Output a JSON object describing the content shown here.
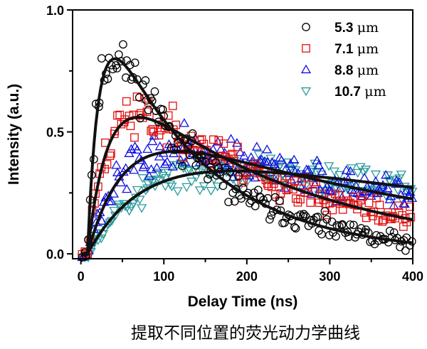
{
  "chart_data": {
    "type": "scatter",
    "caption": "提取不同位置的荧光动力学曲线",
    "xlabel": "Delay Time (ns)",
    "ylabel": "Intensity (a.u.)",
    "xlim": [
      -10,
      400
    ],
    "ylim": [
      -0.02,
      1.0
    ],
    "x_ticks": [
      0,
      100,
      200,
      300,
      400
    ],
    "x_tick_labels": [
      "0",
      "100",
      "200",
      "300",
      "400"
    ],
    "y_ticks": [
      0.0,
      0.5,
      1.0
    ],
    "y_tick_labels": [
      "0.0",
      "0.5",
      "1.0"
    ],
    "legend_position": "top-right",
    "fit_line_color": "#111111",
    "series": [
      {
        "name": "5.3 μm",
        "label_value": "5.3 ",
        "label_unit": "μm",
        "marker": "circle",
        "color": "#000000",
        "fit": {
          "amp": 0.8,
          "t0": 8,
          "rise": 15,
          "decay": 120,
          "end": 398
        },
        "noise": 0.045,
        "seed": 11,
        "n": 170
      },
      {
        "name": "7.1 μm",
        "label_value": "7.1 ",
        "label_unit": "μm",
        "marker": "square",
        "color": "#e01010",
        "fit": {
          "amp": 0.56,
          "t0": 8,
          "rise": 28,
          "decay": 220,
          "end": 398
        },
        "noise": 0.04,
        "seed": 23,
        "n": 170
      },
      {
        "name": "8.8 μm",
        "label_value": "8.8 ",
        "label_unit": "μm",
        "marker": "triangle-up",
        "color": "#1010e0",
        "fit": {
          "amp": 0.42,
          "t0": 8,
          "rise": 50,
          "decay": 380,
          "end": 400
        },
        "noise": 0.035,
        "seed": 37,
        "n": 170
      },
      {
        "name": "10.7 μm",
        "label_value": "10.7 ",
        "label_unit": "μm",
        "marker": "triangle-down",
        "color": "#2a9a9a",
        "fit": {
          "amp": 0.34,
          "t0": 8,
          "rise": 80,
          "decay": 650,
          "end": 400
        },
        "noise": 0.032,
        "seed": 53,
        "n": 170
      }
    ]
  }
}
